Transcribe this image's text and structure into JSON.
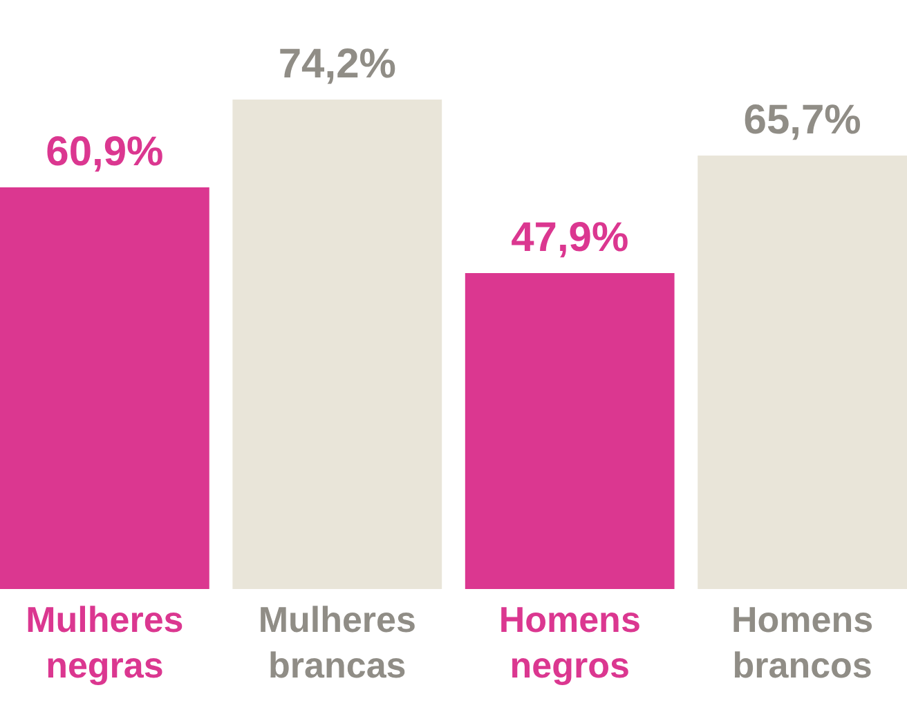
{
  "chart_data": {
    "type": "bar",
    "categories": [
      "Mulheres negras",
      "Mulheres brancas",
      "Homens negros",
      "Homens brancos"
    ],
    "values": [
      60.9,
      74.2,
      47.9,
      65.7
    ],
    "colors": [
      "#db3790",
      "#e9e5d9",
      "#db3790",
      "#e9e5d9"
    ],
    "value_labels": [
      "60,9%",
      "74,2%",
      "47,9%",
      "65,7%"
    ],
    "grid": false
  }
}
